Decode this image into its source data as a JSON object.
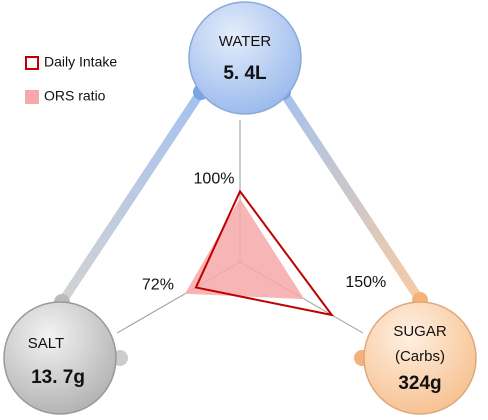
{
  "chart_data": {
    "type": "radar",
    "axes": [
      {
        "label": "WATER",
        "amount": "5. 4L"
      },
      {
        "label": "SUGAR",
        "sublabel": "(Carbs)",
        "amount": "324g"
      },
      {
        "label": "SALT",
        "amount": "13. 7g"
      }
    ],
    "rlim": [
      0,
      150
    ],
    "series": [
      {
        "name": "ORS ratio",
        "color": "#f7a8a8",
        "filled": true,
        "values": [
          90,
          105,
          90
        ]
      },
      {
        "name": "Daily Intake",
        "color": "#c00000",
        "filled": false,
        "values": [
          100,
          150,
          72
        ],
        "value_labels": [
          "100%",
          "150%",
          "72%"
        ]
      }
    ]
  }
}
